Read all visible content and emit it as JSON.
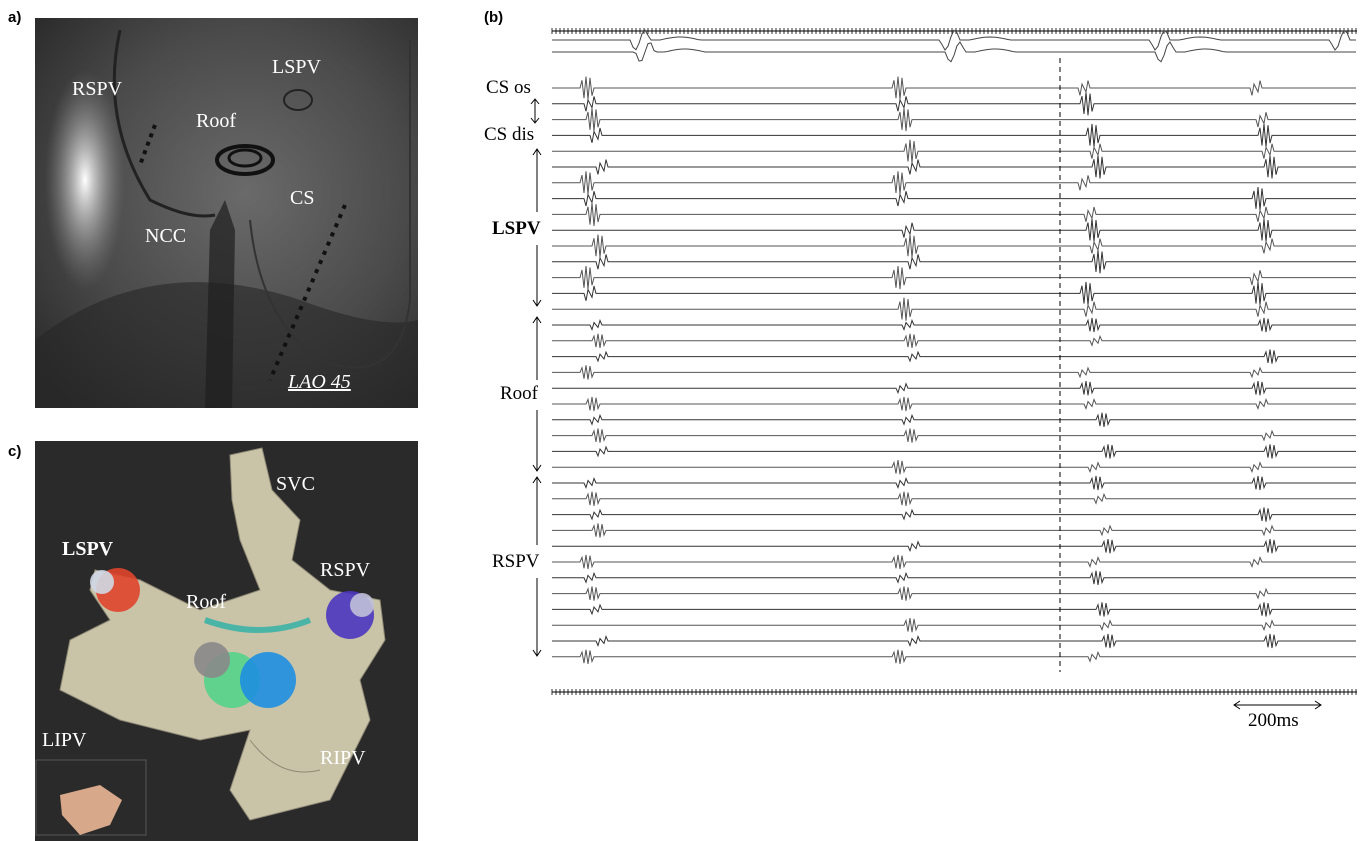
{
  "panels": {
    "a": {
      "label": "a)",
      "annotations": [
        "RSPV",
        "LSPV",
        "Roof",
        "NCC",
        "CS",
        "LAO 45"
      ]
    },
    "b": {
      "label": "(b)",
      "channels": [
        "CS os",
        "CS dis",
        "LSPV",
        "Roof",
        "RSPV"
      ],
      "scale": "200ms"
    },
    "c": {
      "label": "c)",
      "annotations": [
        "SVC",
        "LSPV",
        "Roof",
        "RSPV",
        "LIPV",
        "RIPV"
      ]
    }
  }
}
